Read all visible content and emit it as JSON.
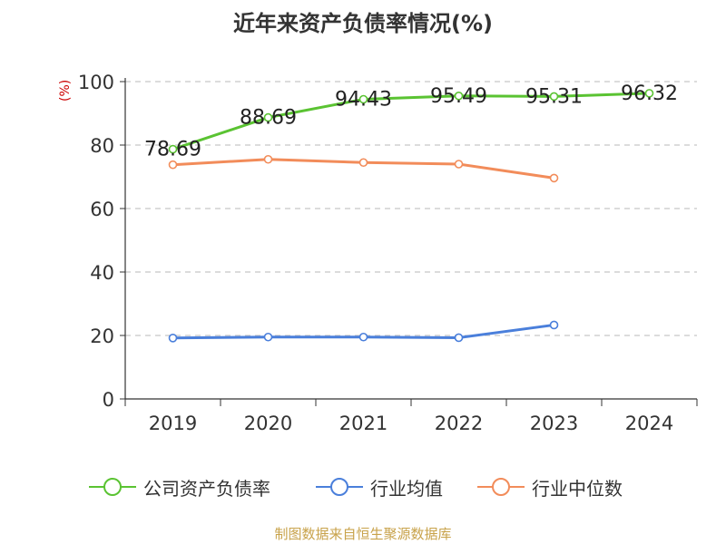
{
  "chart_data": {
    "type": "line",
    "title": "近年来资产负债率情况(%)",
    "ylabel": "(%)",
    "xlabel": "",
    "categories": [
      "2019",
      "2020",
      "2021",
      "2022",
      "2023",
      "2024"
    ],
    "ylim": [
      0,
      100
    ],
    "yticks": [
      0,
      20,
      40,
      60,
      80,
      100
    ],
    "grid": true,
    "legend_position": "bottom",
    "series": [
      {
        "name": "公司资产负债率",
        "color": "#5ac332",
        "values": [
          78.69,
          88.69,
          94.43,
          95.49,
          95.31,
          96.32
        ],
        "labels": [
          "78.69",
          "88.69",
          "94.43",
          "95.49",
          "95.31",
          "96.32"
        ]
      },
      {
        "name": "行业均值",
        "color": "#4a7fdb",
        "values": [
          19.2,
          19.5,
          19.5,
          19.3,
          23.3,
          null
        ]
      },
      {
        "name": "行业中位数",
        "color": "#f28c5a",
        "values": [
          73.8,
          75.5,
          74.5,
          74.0,
          69.6,
          null
        ]
      }
    ]
  },
  "source_text": "制图数据来自恒生聚源数据库"
}
